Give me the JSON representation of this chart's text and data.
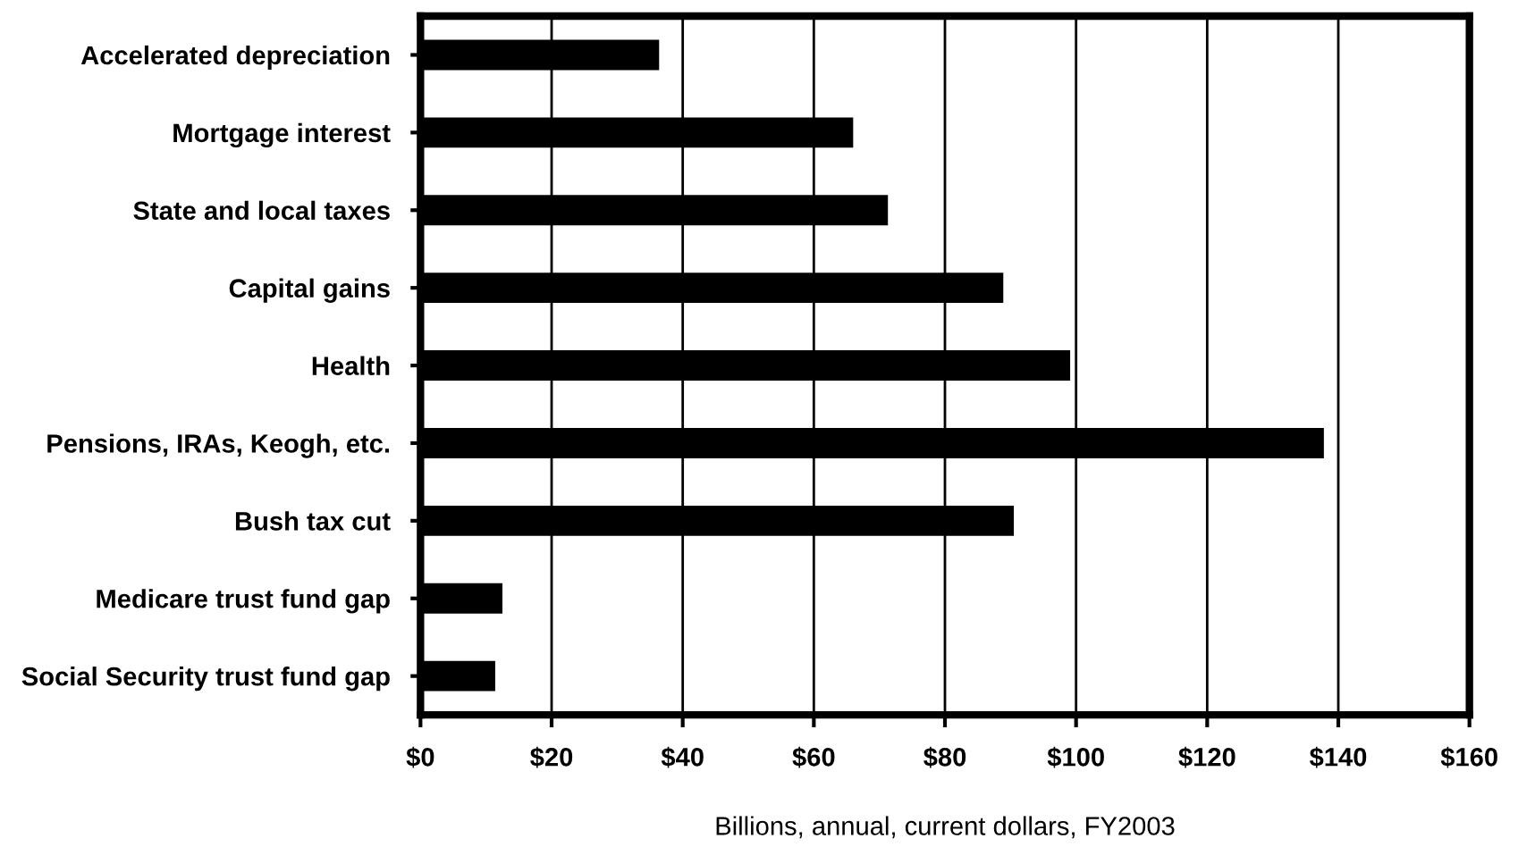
{
  "chart_data": {
    "type": "bar",
    "orientation": "horizontal",
    "xlabel": "Billions, annual, current dollars, FY2003",
    "categories": [
      "Accelerated depreciation",
      "Mortgage interest",
      "State and local taxes",
      "Capital gains",
      "Health",
      "Pensions, IRAs, Keogh, etc.",
      "Bush tax cut",
      "Medicare trust fund gap",
      "Social Security trust fund gap"
    ],
    "values": [
      36.4,
      66.0,
      71.3,
      88.9,
      99.1,
      137.8,
      90.5,
      12.5,
      11.4
    ],
    "color": "#000000",
    "xlim": [
      0,
      160
    ],
    "xticks": [
      {
        "value": 0,
        "label": "$0"
      },
      {
        "value": 20,
        "label": "$20"
      },
      {
        "value": 40,
        "label": "$40"
      },
      {
        "value": 60,
        "label": "$60"
      },
      {
        "value": 80,
        "label": "$80"
      },
      {
        "value": 100,
        "label": "$100"
      },
      {
        "value": 120,
        "label": "$120"
      },
      {
        "value": 140,
        "label": "$140"
      },
      {
        "value": 160,
        "label": "$160"
      }
    ],
    "grid": "x"
  }
}
